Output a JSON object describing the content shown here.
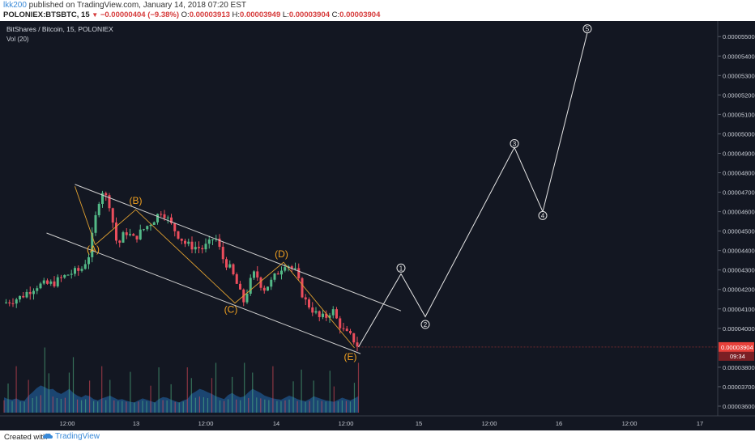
{
  "header": {
    "user": "lkk200",
    "published": " published on TradingView.com, January 14, 2018 07:20 EST",
    "symbol": "POLONIEX:BTSBTC, 15",
    "change": "−0.00000404 (−9.38%)",
    "open_label": "O:",
    "open": "0.00003913",
    "high_label": "H:",
    "high": "0.00003949",
    "low_label": "L:",
    "low": "0.00003904",
    "close_label": "C:",
    "close": "0.00003904"
  },
  "footer": {
    "created_with": "Created with",
    "brand": "TradingView"
  },
  "colors": {
    "background": "#131722",
    "up": "#53b987",
    "down": "#eb4d5c",
    "channel": "#d0d0d0",
    "orange_path": "#e0a030",
    "wave_label": "#f0a020",
    "projection": "#e6e6e6",
    "volume_fill": "#1d4a7a",
    "price_tag": "#e8403a"
  },
  "chart_data": {
    "type": "candlestick",
    "title": "BitShares / Bitcoin, 15, POLONIEX",
    "indicator": "Vol (20)",
    "y_ticks": [
      "0.00005500",
      "0.00005400",
      "0.00005300",
      "0.00005200",
      "0.00005100",
      "0.00005000",
      "0.00004900",
      "0.00004800",
      "0.00004700",
      "0.00004600",
      "0.00004500",
      "0.00004400",
      "0.00004300",
      "0.00004200",
      "0.00004100",
      "0.00004000",
      "0.00003800",
      "0.00003700",
      "0.00003600"
    ],
    "ylim": [
      3.55e-05,
      5.58e-05
    ],
    "x_ticks": [
      "12:00",
      "13",
      "12:00",
      "14",
      "12:00",
      "15",
      "12:00",
      "16",
      "12:00",
      "17"
    ],
    "last_price": "0.00003904",
    "countdown": "09:34",
    "price_path": [
      [
        0.0,
        4.13e-05
      ],
      [
        4.0,
        4.16e-05
      ],
      [
        8.0,
        4.22e-05
      ],
      [
        12.0,
        4.23e-05
      ],
      [
        16.0,
        4.28e-05
      ],
      [
        19.0,
        4.3e-05
      ],
      [
        21.0,
        4.38e-05
      ],
      [
        22.5,
        4.56e-05
      ],
      [
        24.0,
        4.72e-05
      ],
      [
        26.0,
        4.64e-05
      ],
      [
        28.0,
        4.42e-05
      ],
      [
        30.0,
        4.5e-05
      ],
      [
        32.0,
        4.46e-05
      ],
      [
        35.0,
        4.52e-05
      ],
      [
        37.0,
        4.56e-05
      ],
      [
        39.0,
        4.61e-05
      ],
      [
        41.0,
        4.54e-05
      ],
      [
        43.0,
        4.48e-05
      ],
      [
        45.0,
        4.43e-05
      ],
      [
        47.0,
        4.42e-05
      ],
      [
        49.0,
        4.41e-05
      ],
      [
        51.0,
        4.44e-05
      ],
      [
        52.0,
        4.48e-05
      ],
      [
        54.0,
        4.36e-05
      ],
      [
        56.0,
        4.3e-05
      ],
      [
        58.0,
        4.2e-05
      ],
      [
        59.0,
        4.13e-05
      ],
      [
        61.0,
        4.25e-05
      ],
      [
        62.0,
        4.29e-05
      ],
      [
        64.0,
        4.2e-05
      ],
      [
        66.0,
        4.24e-05
      ],
      [
        68.0,
        4.3e-05
      ],
      [
        69.5,
        4.34e-05
      ],
      [
        72.0,
        4.29e-05
      ],
      [
        74.0,
        4.15e-05
      ],
      [
        76.0,
        4.1e-05
      ],
      [
        78.0,
        4.05e-05
      ],
      [
        79.5,
        4.06e-05
      ],
      [
        81.0,
        4.1e-05
      ],
      [
        82.0,
        4.05e-05
      ],
      [
        84.0,
        3.98e-05
      ],
      [
        86.0,
        3.95e-05
      ],
      [
        87.5,
        3.904e-05
      ]
    ],
    "volume_profile": [
      0.45,
      0.4,
      0.38,
      0.42,
      0.36,
      0.35,
      0.5,
      0.6,
      0.72,
      0.8,
      0.75,
      0.68,
      0.7,
      0.6,
      0.55,
      0.62,
      0.7,
      0.58,
      0.5,
      0.45,
      0.52,
      0.48,
      0.4,
      0.36,
      0.42,
      0.46,
      0.5,
      0.44,
      0.38,
      0.4,
      0.35,
      0.32,
      0.3,
      0.36,
      0.42,
      0.38,
      0.34,
      0.3,
      0.4,
      0.46,
      0.44,
      0.38,
      0.34,
      0.3,
      0.36,
      0.4,
      0.55,
      0.62,
      0.7,
      0.66,
      0.6,
      0.55,
      0.48,
      0.44,
      0.4,
      0.52,
      0.58,
      0.5,
      0.45,
      0.48,
      0.6,
      0.7,
      0.64,
      0.58,
      0.5,
      0.46,
      0.42,
      0.4,
      0.38,
      0.44,
      0.5,
      0.46,
      0.4,
      0.36,
      0.34,
      0.4,
      0.48,
      0.44,
      0.4,
      0.36,
      0.34,
      0.32,
      0.38,
      0.44,
      0.4,
      0.36,
      0.42,
      0.48
    ],
    "channel_upper": [
      [
        17.5,
        4.74e-05
      ],
      [
        98.0,
        4.09e-05
      ]
    ],
    "channel_lower": [
      [
        10.5,
        4.49e-05
      ],
      [
        88.0,
        3.87e-05
      ]
    ],
    "orange_path": [
      [
        17.5,
        4.73e-05
      ],
      [
        22.5,
        4.43e-05
      ],
      [
        32.5,
        4.61e-05
      ],
      [
        57.0,
        4.13e-05
      ],
      [
        69.0,
        4.34e-05
      ],
      [
        86.5,
        3.9e-05
      ]
    ],
    "wave_labels": [
      {
        "text": "(A)",
        "x": 22.0,
        "y": 4.39e-05
      },
      {
        "text": "(B)",
        "x": 32.5,
        "y": 4.64e-05
      },
      {
        "text": "(C)",
        "x": 56.0,
        "y": 4.08e-05
      },
      {
        "text": "(D)",
        "x": 68.5,
        "y": 4.365e-05
      },
      {
        "text": "(E)",
        "x": 85.5,
        "y": 3.836e-05
      }
    ],
    "projection": [
      [
        87.5,
        3.904e-05
      ],
      [
        98.0,
        4.28e-05
      ],
      [
        104.0,
        4.06e-05
      ],
      [
        126.0,
        4.93e-05
      ],
      [
        133.0,
        4.6e-05
      ],
      [
        144.0,
        5.52e-05
      ]
    ],
    "projection_labels": [
      {
        "text": "1",
        "x": 98.0,
        "y": 4.31e-05
      },
      {
        "text": "2",
        "x": 104.0,
        "y": 4.02e-05
      },
      {
        "text": "3",
        "x": 126.0,
        "y": 4.95e-05
      },
      {
        "text": "4",
        "x": 133.0,
        "y": 4.58e-05
      },
      {
        "text": "5",
        "x": 144.0,
        "y": 5.54e-05
      }
    ]
  }
}
